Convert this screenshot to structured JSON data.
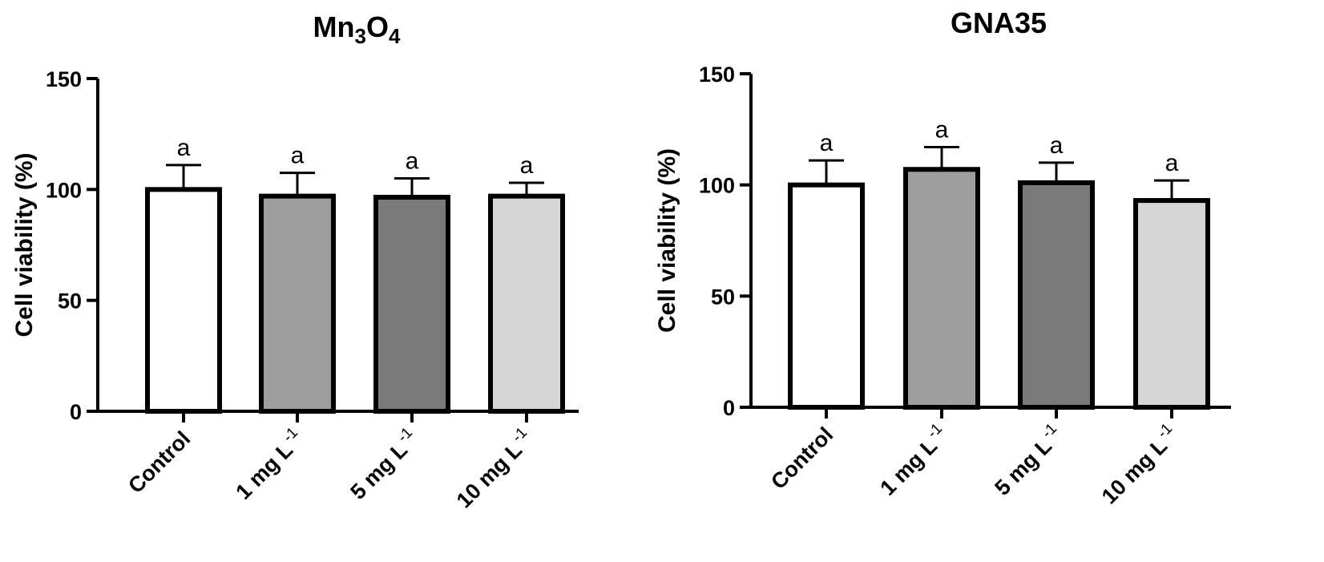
{
  "chart_data": [
    {
      "type": "bar",
      "title": "Mn3O4",
      "title_parts": [
        {
          "text": "Mn",
          "sub": false
        },
        {
          "text": "3",
          "sub": true
        },
        {
          "text": "O",
          "sub": false
        },
        {
          "text": "4",
          "sub": true
        }
      ],
      "ylabel": "Cell viability (%)",
      "xlabel": "",
      "ylim": [
        0,
        150
      ],
      "yticks": [
        0,
        50,
        100,
        150
      ],
      "categories": [
        "Control",
        "1 mg L-1",
        "5 mg L-1",
        "10 mg L-1"
      ],
      "category_labels": [
        {
          "main": "Control",
          "sup": ""
        },
        {
          "main": "1 mg L",
          "sup": "-1"
        },
        {
          "main": "5 mg L",
          "sup": "-1"
        },
        {
          "main": "10 mg L",
          "sup": "-1"
        }
      ],
      "values": [
        100,
        97,
        96.5,
        97
      ],
      "errors": [
        11,
        10.5,
        8.5,
        6
      ],
      "significance": [
        "a",
        "a",
        "a",
        "a"
      ],
      "bar_colors": [
        "#ffffff",
        "#9e9e9e",
        "#7a7a7a",
        "#d6d6d6"
      ],
      "grid": false,
      "legend": "none"
    },
    {
      "type": "bar",
      "title": "GNA35",
      "title_parts": [
        {
          "text": "GNA35",
          "sub": false
        }
      ],
      "ylabel": "Cell viability (%)",
      "xlabel": "",
      "ylim": [
        0,
        150
      ],
      "yticks": [
        0,
        50,
        100,
        150
      ],
      "categories": [
        "Control",
        "1 mg L-1",
        "5 mg L-1",
        "10 mg L-1"
      ],
      "category_labels": [
        {
          "main": "Control",
          "sup": ""
        },
        {
          "main": "1 mg L",
          "sup": "-1"
        },
        {
          "main": "5 mg L",
          "sup": "-1"
        },
        {
          "main": "10 mg L",
          "sup": "-1"
        }
      ],
      "values": [
        100,
        107,
        101,
        93
      ],
      "errors": [
        11,
        10,
        9,
        9
      ],
      "significance": [
        "a",
        "a",
        "a",
        "a"
      ],
      "bar_colors": [
        "#ffffff",
        "#9e9e9e",
        "#7a7a7a",
        "#d6d6d6"
      ],
      "grid": false,
      "legend": "none"
    }
  ]
}
